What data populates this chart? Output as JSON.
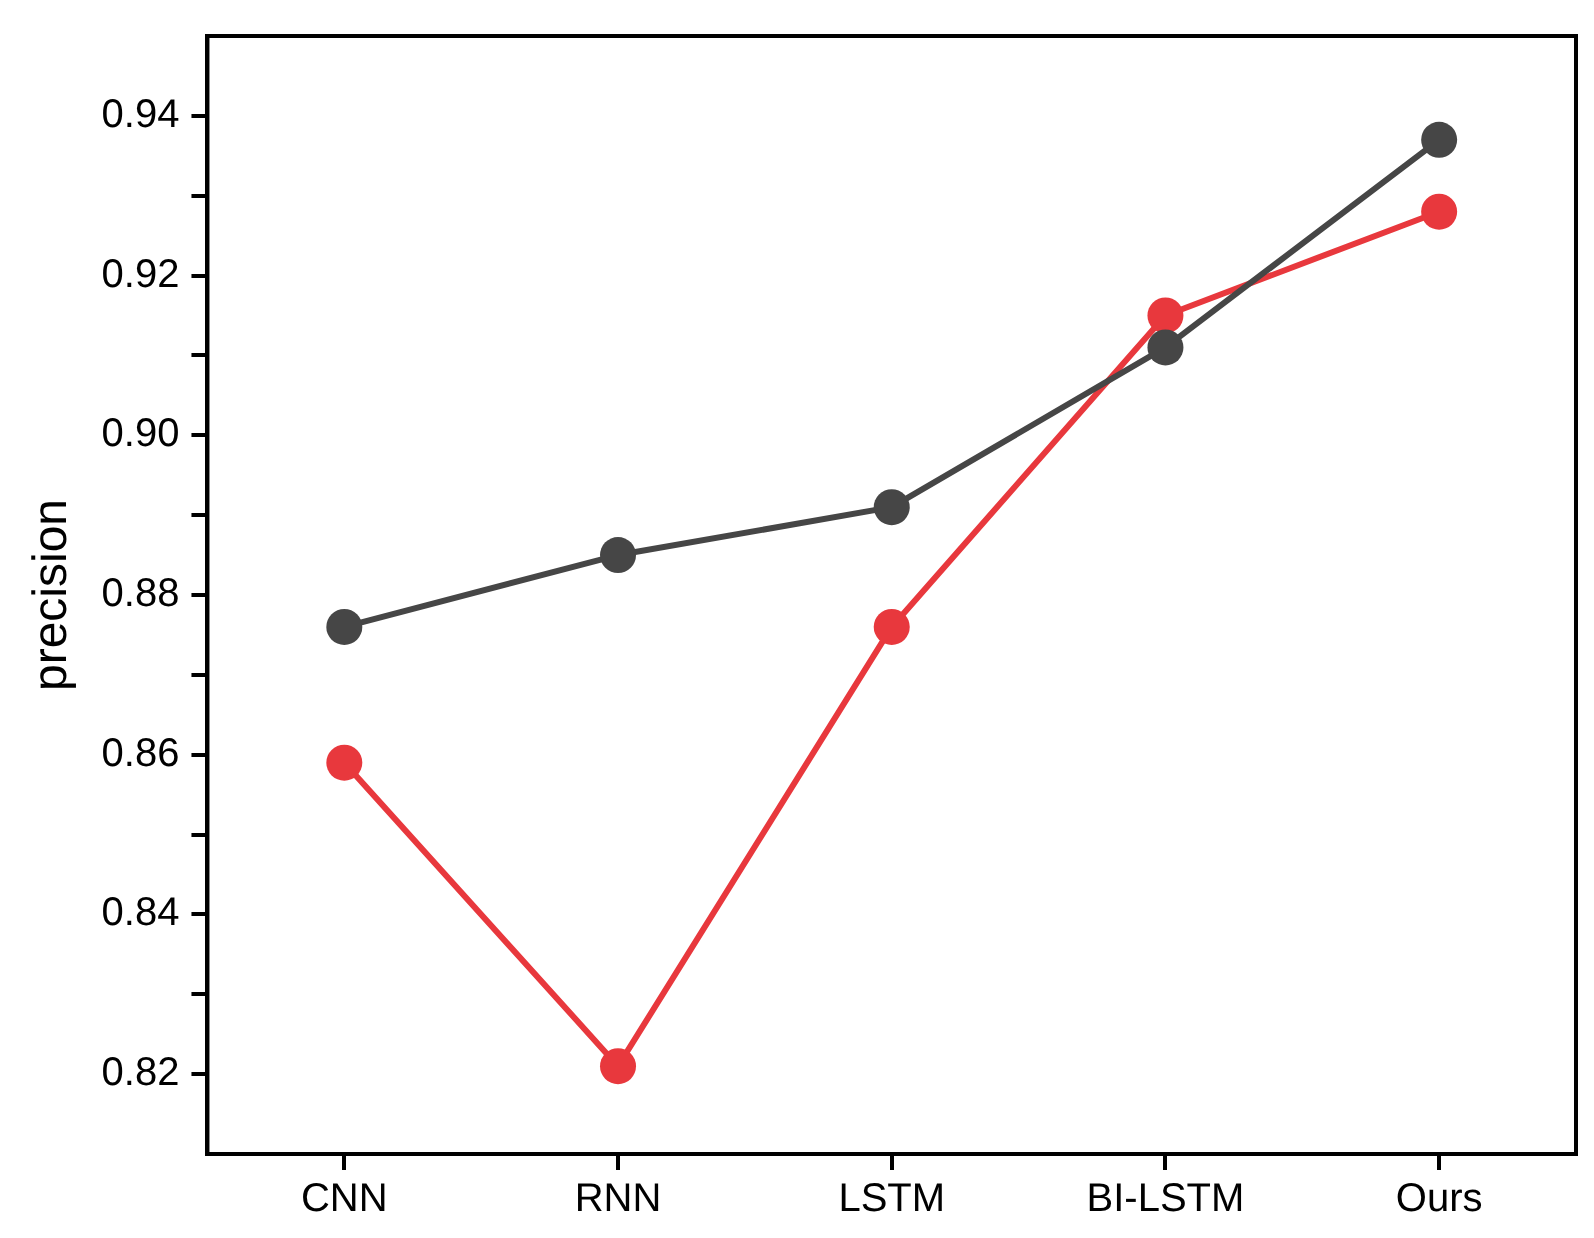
{
  "chart_data": {
    "type": "line",
    "ylabel": "precision",
    "categories": [
      "CNN",
      "RNN",
      "LSTM",
      "BI-LSTM",
      "Ours"
    ],
    "series": [
      {
        "color": "#464646",
        "values": [
          0.876,
          0.885,
          0.891,
          0.911,
          0.937
        ]
      },
      {
        "color": "#e8383d",
        "values": [
          0.859,
          0.821,
          0.876,
          0.915,
          0.928
        ]
      }
    ],
    "ylim": [
      0.81,
      0.95
    ],
    "yticks": [
      {
        "value": 0.82,
        "label": "0.82"
      },
      {
        "value": 0.83,
        "label": null
      },
      {
        "value": 0.84,
        "label": "0.84"
      },
      {
        "value": 0.85,
        "label": null
      },
      {
        "value": 0.86,
        "label": "0.86"
      },
      {
        "value": 0.87,
        "label": null
      },
      {
        "value": 0.88,
        "label": "0.88"
      },
      {
        "value": 0.89,
        "label": null
      },
      {
        "value": 0.9,
        "label": "0.90"
      },
      {
        "value": 0.91,
        "label": null
      },
      {
        "value": 0.92,
        "label": "0.92"
      },
      {
        "value": 0.93,
        "label": null
      },
      {
        "value": 0.94,
        "label": "0.94"
      }
    ],
    "marker": "circle",
    "line_style": "solid",
    "grid": false,
    "legend": false
  }
}
